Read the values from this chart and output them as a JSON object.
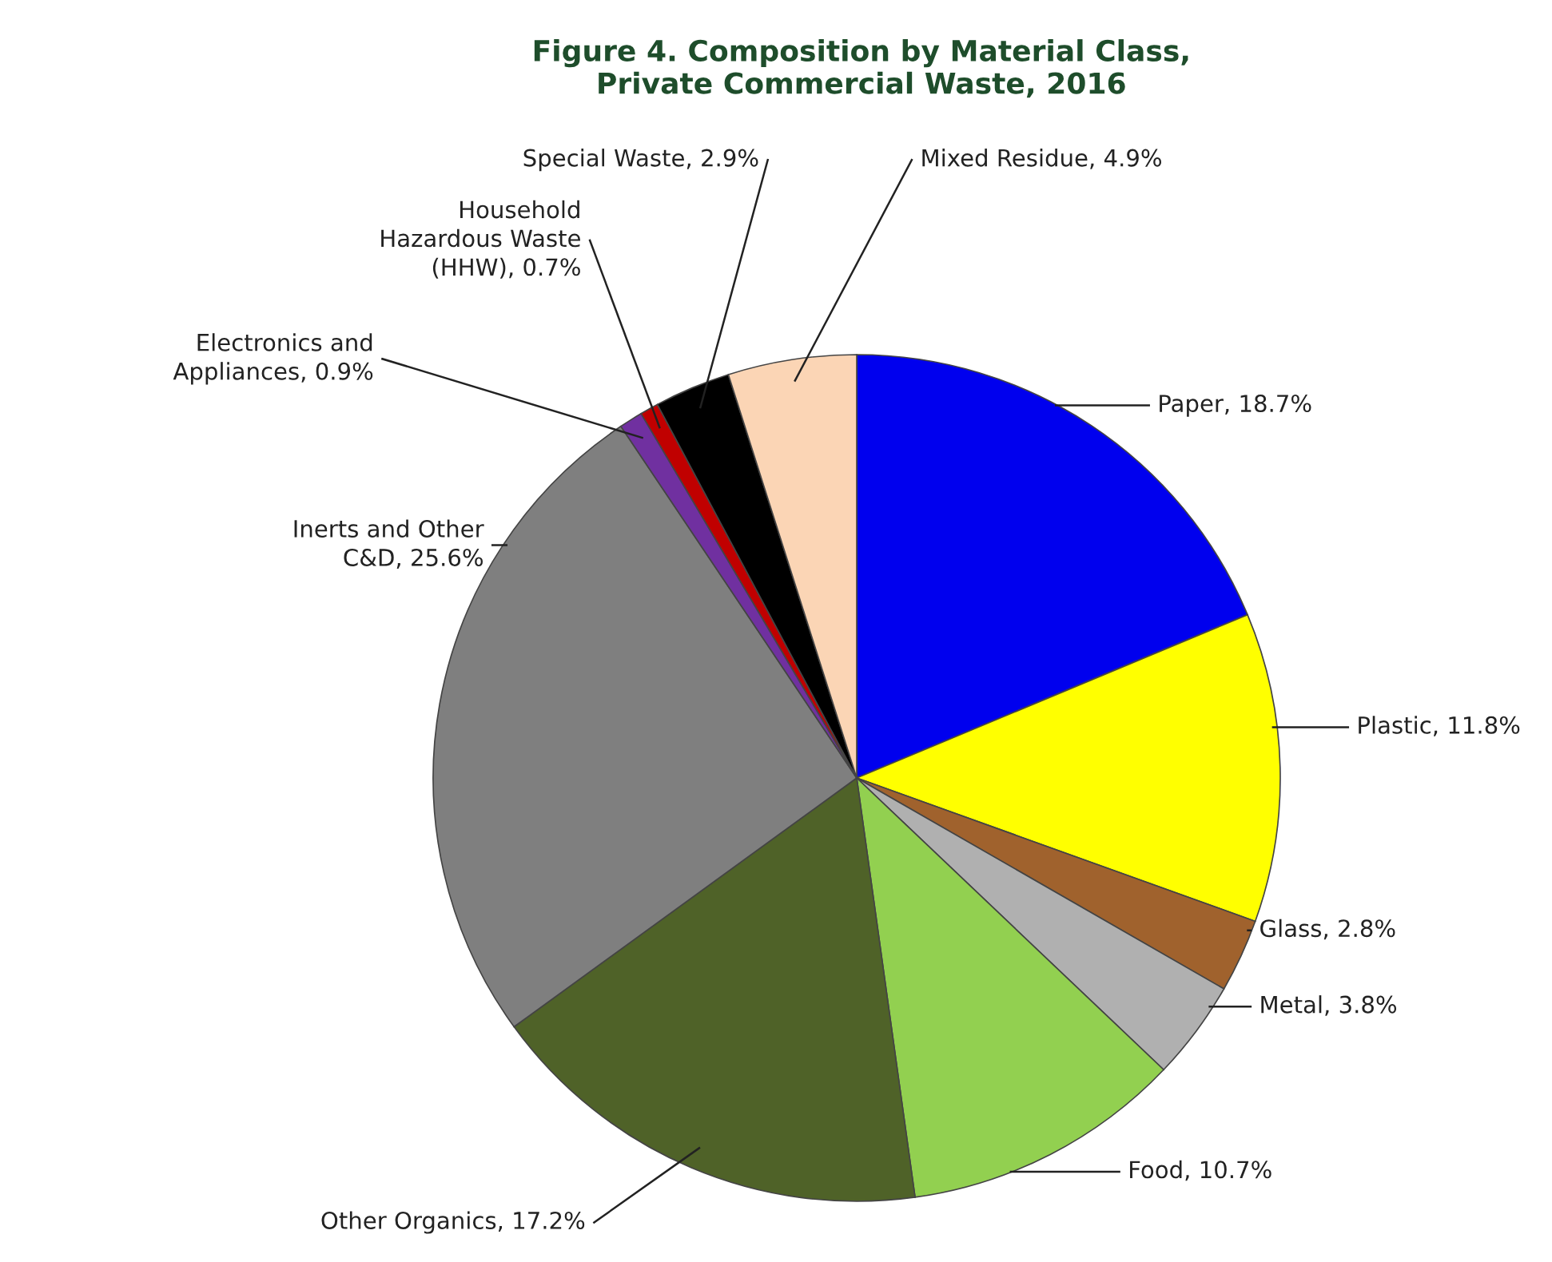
{
  "chart_data": {
    "type": "pie",
    "title": "Figure 4. Composition by Material Class,\nPrivate Commercial Waste, 2016",
    "categories": [
      "Paper",
      "Plastic",
      "Glass",
      "Metal",
      "Food",
      "Other Organics",
      "Inerts and Other\nC&D",
      "Electronics and\nAppliances",
      "Household\nHazardous Waste\n(HHW)",
      "Special Waste",
      "Mixed Residue"
    ],
    "values": [
      18.7,
      11.8,
      2.8,
      3.8,
      10.7,
      17.2,
      25.6,
      0.9,
      0.7,
      2.9,
      4.9
    ],
    "value_labels": [
      "18.7%",
      "11.8%",
      "2.8%",
      "3.8%",
      "10.7%",
      "17.2%",
      "25.6%",
      "0.9%",
      "0.7%",
      "2.9%",
      "4.9%"
    ],
    "colors": [
      "#0000ee",
      "#ffff00",
      "#a0622d",
      "#b0b0b0",
      "#92d050",
      "#4f6228",
      "#7f7f7f",
      "#7030a0",
      "#c00000",
      "#000000",
      "#fbd5b5"
    ]
  }
}
